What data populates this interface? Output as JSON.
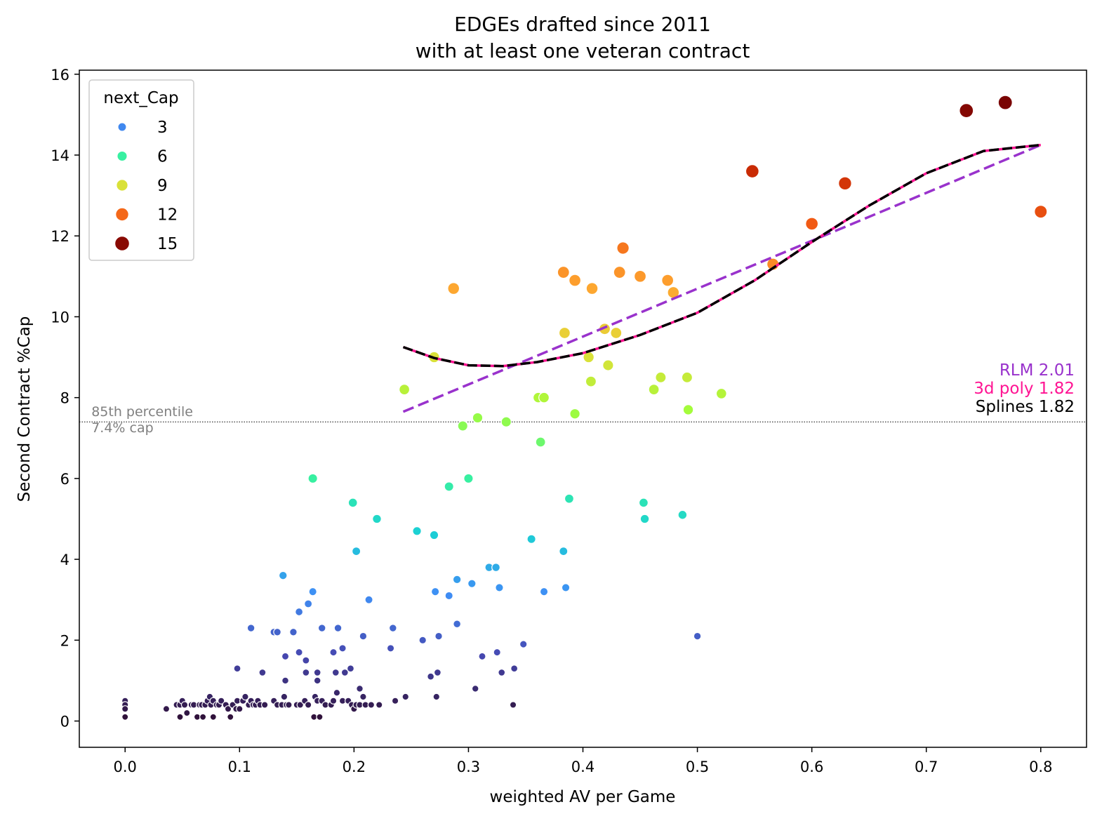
{
  "chart_data": {
    "type": "scatter",
    "title": [
      "EDGEs drafted since 2011",
      "with at least one veteran contract"
    ],
    "xlabel": "weighted AV per Game",
    "ylabel": "Second Contract %Cap",
    "xlim": [
      -0.04,
      0.84
    ],
    "ylim": [
      -0.65,
      16.1
    ],
    "xticks": [
      0.0,
      0.1,
      0.2,
      0.3,
      0.4,
      0.5,
      0.6,
      0.7,
      0.8
    ],
    "xtick_labels": [
      "0.0",
      "0.1",
      "0.2",
      "0.3",
      "0.4",
      "0.5",
      "0.6",
      "0.7",
      "0.8"
    ],
    "yticks": [
      0,
      2,
      4,
      6,
      8,
      10,
      12,
      14,
      16
    ],
    "ytick_labels": [
      "0",
      "2",
      "4",
      "6",
      "8",
      "10",
      "12",
      "14",
      "16"
    ],
    "grid": false,
    "legend": {
      "title": "next_Cap",
      "placement": "top-left",
      "entries": [
        {
          "label": "3",
          "value": 3,
          "color": "#3f8ef5"
        },
        {
          "label": "6",
          "value": 6,
          "color": "#3cf49a"
        },
        {
          "label": "9",
          "value": 9,
          "color": "#d4e233"
        },
        {
          "label": "12",
          "value": 12,
          "color": "#fb6a1c"
        },
        {
          "label": "15",
          "value": 15,
          "color": "#7a0403"
        }
      ]
    },
    "hue_scale": "turbo",
    "hue_range": [
      0.1,
      15.3
    ],
    "reference_line": {
      "y": 7.4,
      "style": "dotted",
      "labels": [
        "85th percentile",
        "7.4% cap"
      ]
    },
    "fits": [
      {
        "name": "RLM",
        "score_label": "RLM 2.01",
        "color": "#9932cc",
        "style": "dashed",
        "points": [
          [
            0.243,
            7.65
          ],
          [
            0.8,
            14.25
          ]
        ]
      },
      {
        "name": "3d poly",
        "score_label": "3d poly 1.82",
        "color": "#ff1493",
        "style": "solid",
        "points": [
          [
            0.243,
            9.25
          ],
          [
            0.27,
            8.98
          ],
          [
            0.3,
            8.8
          ],
          [
            0.33,
            8.78
          ],
          [
            0.36,
            8.88
          ],
          [
            0.4,
            9.1
          ],
          [
            0.45,
            9.55
          ],
          [
            0.5,
            10.1
          ],
          [
            0.55,
            10.9
          ],
          [
            0.6,
            11.85
          ],
          [
            0.65,
            12.75
          ],
          [
            0.7,
            13.55
          ],
          [
            0.75,
            14.1
          ],
          [
            0.8,
            14.25
          ]
        ]
      },
      {
        "name": "Splines",
        "score_label": "Splines 1.82",
        "color": "#000000",
        "style": "dashed",
        "points": [
          [
            0.243,
            9.25
          ],
          [
            0.27,
            8.98
          ],
          [
            0.3,
            8.8
          ],
          [
            0.33,
            8.78
          ],
          [
            0.36,
            8.88
          ],
          [
            0.4,
            9.1
          ],
          [
            0.45,
            9.55
          ],
          [
            0.5,
            10.1
          ],
          [
            0.55,
            10.9
          ],
          [
            0.6,
            11.85
          ],
          [
            0.65,
            12.75
          ],
          [
            0.7,
            13.55
          ],
          [
            0.75,
            14.1
          ],
          [
            0.8,
            14.25
          ]
        ]
      }
    ],
    "points": [
      [
        0.0,
        0.5
      ],
      [
        0.0,
        0.4
      ],
      [
        0.0,
        0.3
      ],
      [
        0.0,
        0.1
      ],
      [
        0.036,
        0.3
      ],
      [
        0.045,
        0.4
      ],
      [
        0.048,
        0.4
      ],
      [
        0.048,
        0.1
      ],
      [
        0.05,
        0.5
      ],
      [
        0.052,
        0.4
      ],
      [
        0.054,
        0.2
      ],
      [
        0.058,
        0.4
      ],
      [
        0.06,
        0.4
      ],
      [
        0.063,
        0.1
      ],
      [
        0.065,
        0.4
      ],
      [
        0.067,
        0.4
      ],
      [
        0.068,
        0.1
      ],
      [
        0.07,
        0.4
      ],
      [
        0.072,
        0.5
      ],
      [
        0.074,
        0.6
      ],
      [
        0.075,
        0.4
      ],
      [
        0.077,
        0.5
      ],
      [
        0.077,
        0.1
      ],
      [
        0.08,
        0.4
      ],
      [
        0.082,
        0.4
      ],
      [
        0.084,
        0.5
      ],
      [
        0.088,
        0.4
      ],
      [
        0.09,
        0.3
      ],
      [
        0.092,
        0.1
      ],
      [
        0.094,
        0.4
      ],
      [
        0.097,
        0.3
      ],
      [
        0.098,
        0.5
      ],
      [
        0.1,
        0.3
      ],
      [
        0.103,
        0.5
      ],
      [
        0.105,
        0.6
      ],
      [
        0.108,
        0.4
      ],
      [
        0.11,
        0.5
      ],
      [
        0.112,
        0.4
      ],
      [
        0.114,
        0.4
      ],
      [
        0.116,
        0.5
      ],
      [
        0.118,
        0.4
      ],
      [
        0.122,
        0.4
      ],
      [
        0.13,
        0.5
      ],
      [
        0.133,
        0.4
      ],
      [
        0.137,
        0.4
      ],
      [
        0.139,
        0.6
      ],
      [
        0.141,
        0.4
      ],
      [
        0.143,
        0.4
      ],
      [
        0.15,
        0.4
      ],
      [
        0.153,
        0.4
      ],
      [
        0.157,
        0.5
      ],
      [
        0.16,
        0.4
      ],
      [
        0.165,
        0.1
      ],
      [
        0.166,
        0.6
      ],
      [
        0.168,
        0.5
      ],
      [
        0.17,
        0.1
      ],
      [
        0.172,
        0.5
      ],
      [
        0.175,
        0.4
      ],
      [
        0.18,
        0.4
      ],
      [
        0.182,
        0.5
      ],
      [
        0.185,
        0.7
      ],
      [
        0.19,
        0.5
      ],
      [
        0.195,
        0.5
      ],
      [
        0.198,
        0.4
      ],
      [
        0.2,
        0.3
      ],
      [
        0.202,
        0.4
      ],
      [
        0.205,
        0.4
      ],
      [
        0.21,
        0.4
      ],
      [
        0.215,
        0.4
      ],
      [
        0.222,
        0.4
      ],
      [
        0.236,
        0.5
      ],
      [
        0.245,
        0.6
      ],
      [
        0.272,
        0.6
      ],
      [
        0.306,
        0.8
      ],
      [
        0.339,
        0.4
      ],
      [
        0.098,
        1.3
      ],
      [
        0.11,
        2.3
      ],
      [
        0.12,
        1.2
      ],
      [
        0.13,
        2.2
      ],
      [
        0.133,
        2.2
      ],
      [
        0.14,
        1.6
      ],
      [
        0.14,
        1.0
      ],
      [
        0.147,
        2.2
      ],
      [
        0.152,
        1.7
      ],
      [
        0.158,
        1.5
      ],
      [
        0.158,
        1.2
      ],
      [
        0.168,
        1.2
      ],
      [
        0.168,
        1.0
      ],
      [
        0.172,
        2.3
      ],
      [
        0.182,
        1.7
      ],
      [
        0.184,
        1.2
      ],
      [
        0.186,
        2.3
      ],
      [
        0.19,
        1.8
      ],
      [
        0.192,
        1.2
      ],
      [
        0.197,
        1.3
      ],
      [
        0.205,
        0.8
      ],
      [
        0.208,
        2.1
      ],
      [
        0.208,
        0.6
      ],
      [
        0.232,
        1.8
      ],
      [
        0.234,
        2.3
      ],
      [
        0.26,
        2.0
      ],
      [
        0.267,
        1.1
      ],
      [
        0.273,
        1.2
      ],
      [
        0.274,
        2.1
      ],
      [
        0.29,
        2.4
      ],
      [
        0.312,
        1.6
      ],
      [
        0.325,
        1.7
      ],
      [
        0.329,
        1.2
      ],
      [
        0.34,
        1.3
      ],
      [
        0.348,
        1.9
      ],
      [
        0.5,
        2.1
      ],
      [
        0.138,
        3.6
      ],
      [
        0.152,
        2.7
      ],
      [
        0.16,
        2.9
      ],
      [
        0.164,
        3.2
      ],
      [
        0.213,
        3.0
      ],
      [
        0.271,
        3.2
      ],
      [
        0.283,
        3.1
      ],
      [
        0.29,
        3.5
      ],
      [
        0.303,
        3.4
      ],
      [
        0.318,
        3.8
      ],
      [
        0.324,
        3.8
      ],
      [
        0.327,
        3.3
      ],
      [
        0.366,
        3.2
      ],
      [
        0.385,
        3.3
      ],
      [
        0.202,
        4.2
      ],
      [
        0.383,
        4.2
      ],
      [
        0.255,
        4.7
      ],
      [
        0.27,
        4.6
      ],
      [
        0.355,
        4.5
      ],
      [
        0.22,
        5.0
      ],
      [
        0.199,
        5.4
      ],
      [
        0.388,
        5.5
      ],
      [
        0.453,
        5.4
      ],
      [
        0.454,
        5.0
      ],
      [
        0.487,
        5.1
      ],
      [
        0.164,
        6.0
      ],
      [
        0.283,
        5.8
      ],
      [
        0.3,
        6.0
      ],
      [
        0.295,
        7.3
      ],
      [
        0.308,
        7.5
      ],
      [
        0.333,
        7.4
      ],
      [
        0.363,
        6.9
      ],
      [
        0.393,
        7.6
      ],
      [
        0.361,
        8.0
      ],
      [
        0.366,
        8.0
      ],
      [
        0.462,
        8.2
      ],
      [
        0.492,
        7.7
      ],
      [
        0.521,
        8.1
      ],
      [
        0.244,
        8.2
      ],
      [
        0.407,
        8.4
      ],
      [
        0.468,
        8.5
      ],
      [
        0.491,
        8.5
      ],
      [
        0.422,
        8.8
      ],
      [
        0.405,
        9.0
      ],
      [
        0.27,
        9.0
      ],
      [
        0.384,
        9.6
      ],
      [
        0.419,
        9.7
      ],
      [
        0.429,
        9.6
      ],
      [
        0.287,
        10.7
      ],
      [
        0.383,
        11.1
      ],
      [
        0.393,
        10.9
      ],
      [
        0.408,
        10.7
      ],
      [
        0.432,
        11.1
      ],
      [
        0.435,
        11.7
      ],
      [
        0.45,
        11.0
      ],
      [
        0.474,
        10.9
      ],
      [
        0.479,
        10.6
      ],
      [
        0.566,
        11.3
      ],
      [
        0.6,
        12.3
      ],
      [
        0.629,
        13.3
      ],
      [
        0.548,
        13.6
      ],
      [
        0.8,
        12.6
      ],
      [
        0.735,
        15.1
      ],
      [
        0.769,
        15.3
      ]
    ],
    "score_labels": [
      "RLM 2.01",
      "3d poly 1.82",
      "Splines 1.82"
    ]
  }
}
